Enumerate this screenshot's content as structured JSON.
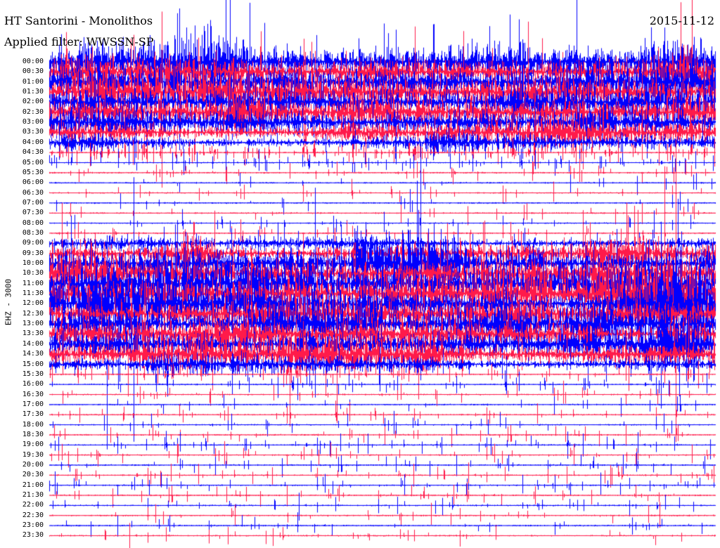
{
  "station_title": "HT Santorini - Monolithos",
  "filter_label": "Applied filter: WWSSN-SP",
  "date": "2015-11-12",
  "channel_label": "EHZ - 3000",
  "colors": {
    "blue": "#0000ff",
    "red": "#ff1a4a"
  },
  "chart_data": {
    "type": "helicorder",
    "x_span": "30 min per trace",
    "row_labels": [
      "00:00",
      "00:30",
      "01:00",
      "01:30",
      "02:00",
      "02:30",
      "03:00",
      "03:30",
      "04:00",
      "04:30",
      "05:00",
      "05:30",
      "06:00",
      "06:30",
      "07:00",
      "07:30",
      "08:00",
      "08:30",
      "09:00",
      "09:30",
      "10:00",
      "10:30",
      "11:00",
      "11:30",
      "12:00",
      "12:30",
      "13:00",
      "13:30",
      "14:00",
      "14:30",
      "15:00",
      "15:30",
      "16:00",
      "16:30",
      "17:00",
      "17:30",
      "18:00",
      "18:30",
      "19:00",
      "19:30",
      "20:00",
      "20:30",
      "21:00",
      "21:30",
      "22:00",
      "22:30",
      "23:00",
      "23:30"
    ],
    "trace_colors": [
      "blue",
      "red"
    ],
    "activity": [
      0.9,
      0.9,
      0.9,
      0.85,
      0.85,
      0.85,
      0.8,
      0.6,
      0.45,
      0.3,
      0.15,
      0.08,
      0.04,
      0.04,
      0.03,
      0.04,
      0.05,
      0.08,
      0.35,
      0.6,
      0.8,
      0.9,
      0.95,
      0.95,
      0.95,
      0.95,
      0.95,
      0.9,
      0.85,
      0.7,
      0.35,
      0.1,
      0.08,
      0.06,
      0.05,
      0.06,
      0.07,
      0.08,
      0.1,
      0.09,
      0.08,
      0.08,
      0.09,
      0.08,
      0.06,
      0.05,
      0.05,
      0.05
    ]
  }
}
